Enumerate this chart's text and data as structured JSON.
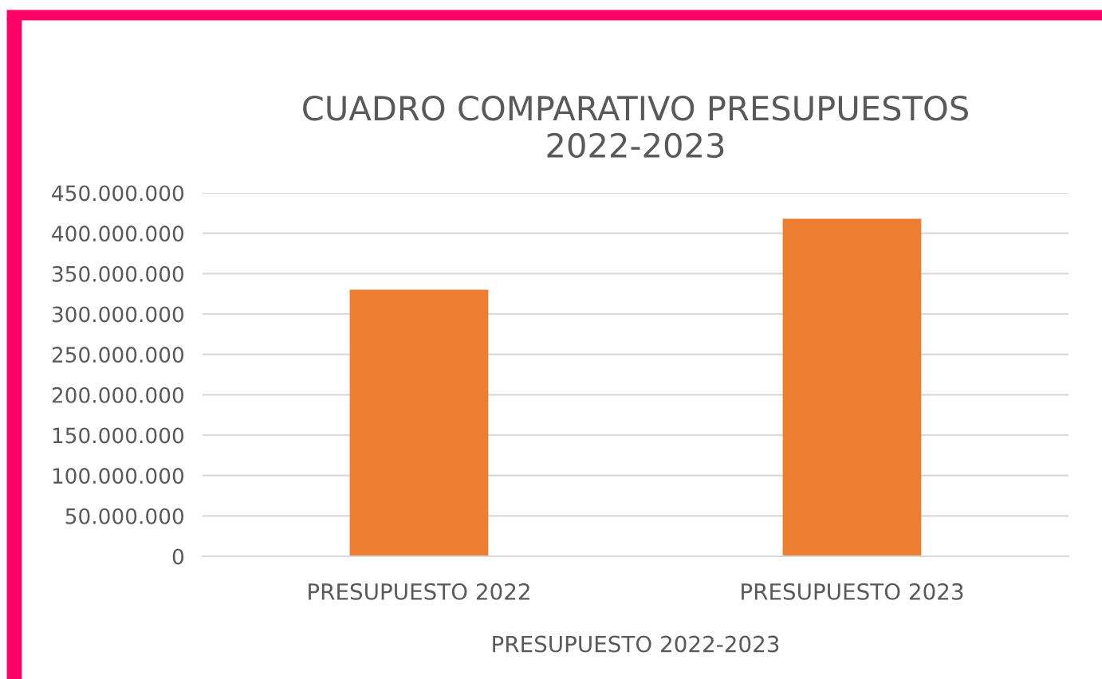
{
  "chart_data": {
    "type": "bar",
    "title": "CUADRO COMPARATIVO PRESUPUESTOS\n2022-2023",
    "xlabel": "PRESUPUESTO 2022-2023",
    "categories": [
      "PRESUPUESTO 2022",
      "PRESUPUESTO 2023"
    ],
    "series": [
      {
        "color": "#ed7d31",
        "values": [
          330000000,
          418000000
        ]
      }
    ],
    "ylim": [
      0,
      450000000
    ],
    "yticks": [
      0,
      {
        "value": 50000000,
        "label": "50.000.000"
      },
      {
        "value": 100000000,
        "label": "100.000.000"
      },
      {
        "value": 150000000,
        "label": "150.000.000"
      },
      {
        "value": 200000000,
        "label": "200.000.000"
      },
      {
        "value": 250000000,
        "label": "250.000.000"
      },
      {
        "value": 300000000,
        "label": "300.000.000"
      },
      {
        "value": 350000000,
        "label": "350.000.000"
      },
      {
        "value": 400000000,
        "label": "400.000.000"
      },
      {
        "value": 450000000,
        "label": "450.000.000"
      }
    ],
    "grid": "y",
    "legend": false
  }
}
